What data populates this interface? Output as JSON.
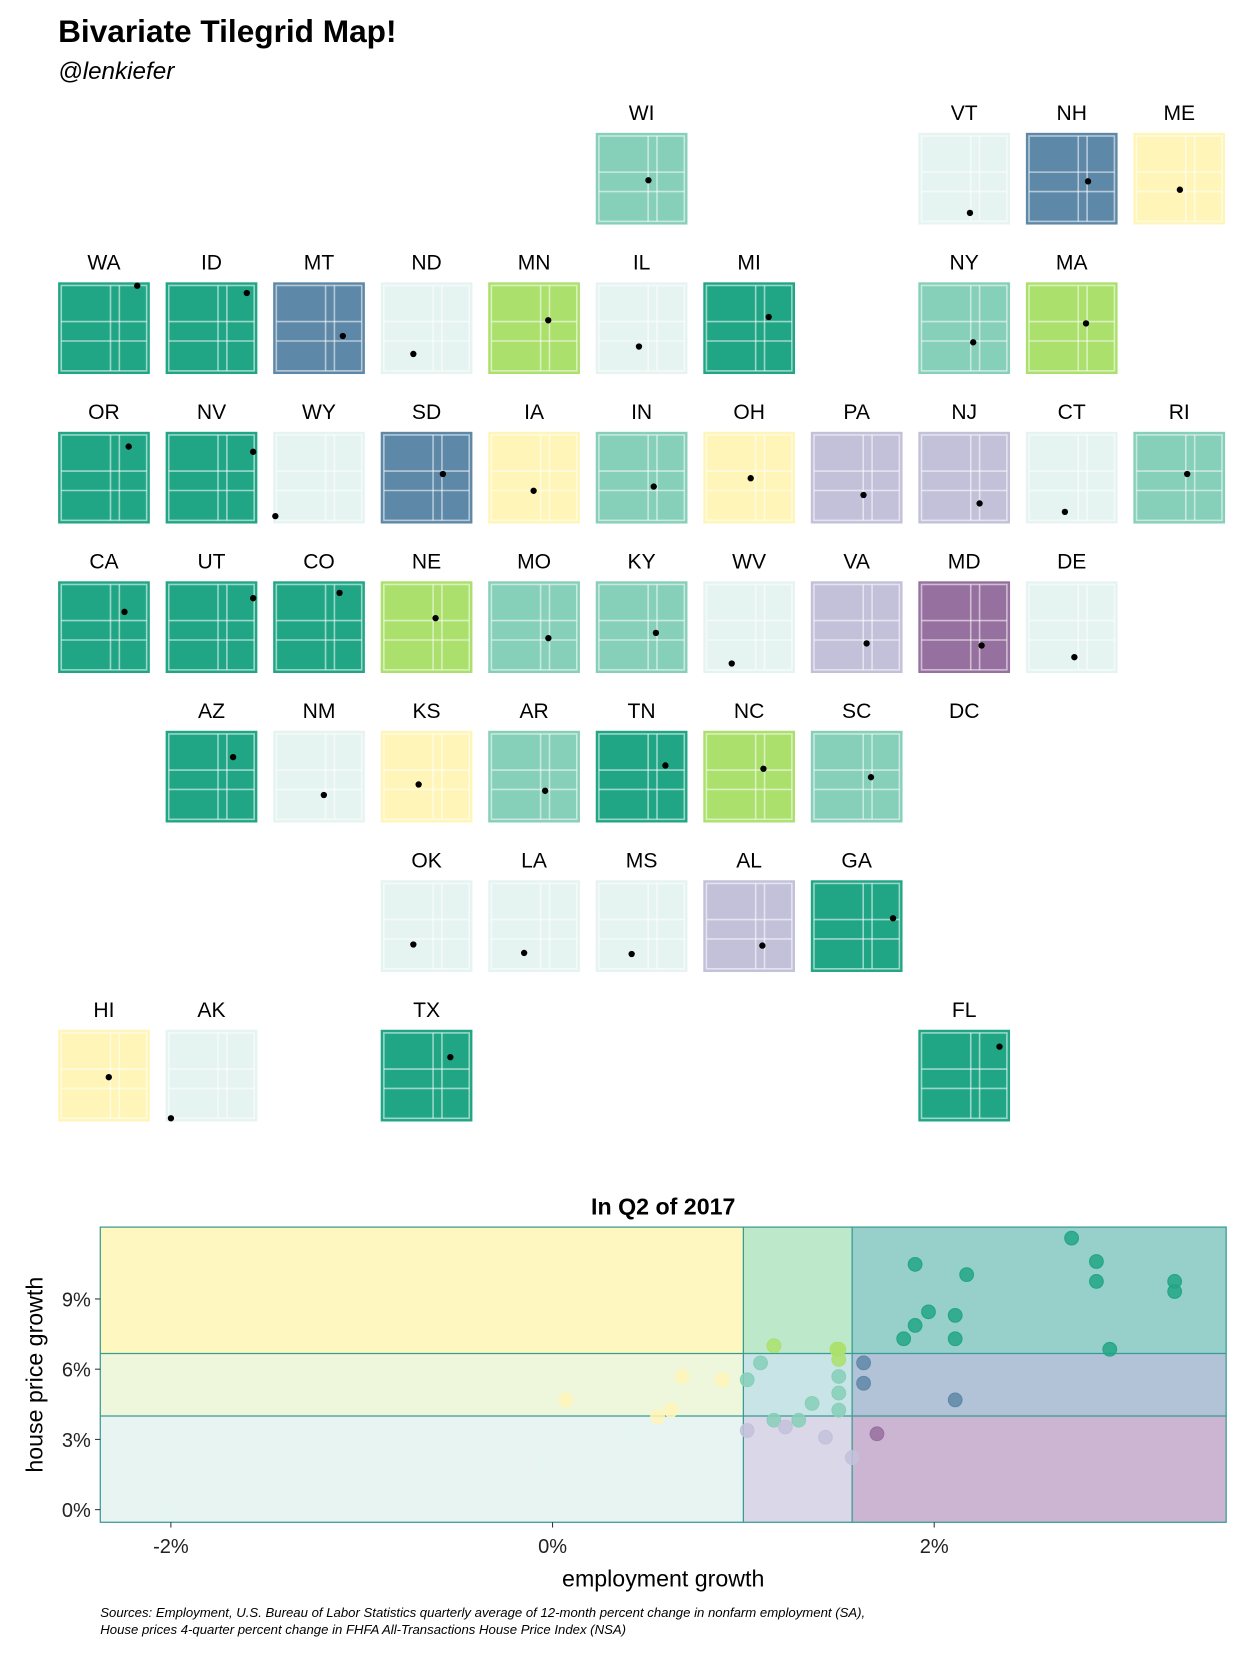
{
  "chart_data": {
    "type": "bivariate-tilegrid",
    "title": "Bivariate Tilegrid Map!",
    "subtitle": "@lenkiefer",
    "xlim": [
      -2.37,
      3.53
    ],
    "ylim": [
      -0.54,
      12.07
    ],
    "x_breaks": [
      1.0,
      1.57
    ],
    "y_breaks": [
      4.0,
      6.67
    ],
    "region_colors": [
      [
        "#fff7c0",
        "#bde8c9",
        "#97cfca"
      ],
      [
        "#eef6dc",
        "#c8e4e6",
        "#b2c3d8"
      ],
      [
        "#e8f4f2",
        "#dad8e8",
        "#ccb5d3"
      ]
    ],
    "break_color": "#3a9b94",
    "states": [
      {
        "name": "WI",
        "x": 1.02,
        "y": 5.55,
        "color": "#86cfb8"
      },
      {
        "name": "VT",
        "x": 0.95,
        "y": 1.06,
        "color": "#e6f4f1"
      },
      {
        "name": "NH",
        "x": 1.63,
        "y": 5.4,
        "color": "#5e88a8"
      },
      {
        "name": "ME",
        "x": 0.62,
        "y": 4.25,
        "color": "#fff5b8"
      },
      {
        "name": "WA",
        "x": 2.72,
        "y": 11.6,
        "color": "#21a685"
      },
      {
        "name": "ID",
        "x": 2.85,
        "y": 10.6,
        "color": "#21a685"
      },
      {
        "name": "MT",
        "x": 2.11,
        "y": 4.69,
        "color": "#5e88a8"
      },
      {
        "name": "ND",
        "x": -0.27,
        "y": 2.22,
        "color": "#e6f4f1"
      },
      {
        "name": "MN",
        "x": 1.49,
        "y": 6.85,
        "color": "#abe06c"
      },
      {
        "name": "IL",
        "x": 0.41,
        "y": 3.24,
        "color": "#e6f4f1"
      },
      {
        "name": "MI",
        "x": 1.84,
        "y": 7.3,
        "color": "#21a685"
      },
      {
        "name": "NY",
        "x": 1.16,
        "y": 3.82,
        "color": "#86cfb8"
      },
      {
        "name": "MA",
        "x": 1.5,
        "y": 6.42,
        "color": "#abe06c"
      },
      {
        "name": "OR",
        "x": 2.17,
        "y": 10.04,
        "color": "#21a685"
      },
      {
        "name": "NV",
        "x": 3.26,
        "y": 9.32,
        "color": "#21a685"
      },
      {
        "name": "WY",
        "x": -2.23,
        "y": 0.48,
        "color": "#e6f4f1"
      },
      {
        "name": "SD",
        "x": 1.63,
        "y": 6.27,
        "color": "#5e88a8"
      },
      {
        "name": "IA",
        "x": 0.55,
        "y": 3.96,
        "color": "#fff5b8"
      },
      {
        "name": "IN",
        "x": 1.36,
        "y": 4.54,
        "color": "#86cfb8"
      },
      {
        "name": "OH",
        "x": 0.68,
        "y": 5.69,
        "color": "#fff5b8"
      },
      {
        "name": "PA",
        "x": 1.02,
        "y": 3.38,
        "color": "#c3c1da"
      },
      {
        "name": "NJ",
        "x": 1.57,
        "y": 2.22,
        "color": "#c3c1da"
      },
      {
        "name": "CT",
        "x": 0.14,
        "y": 1.06,
        "color": "#e6f4f1"
      },
      {
        "name": "RI",
        "x": 1.09,
        "y": 6.27,
        "color": "#86cfb8"
      },
      {
        "name": "CA",
        "x": 1.9,
        "y": 7.87,
        "color": "#21a685"
      },
      {
        "name": "UT",
        "x": 3.26,
        "y": 9.75,
        "color": "#21a685"
      },
      {
        "name": "CO",
        "x": 1.9,
        "y": 10.48,
        "color": "#21a685"
      },
      {
        "name": "NE",
        "x": 1.16,
        "y": 7.0,
        "color": "#abe06c"
      },
      {
        "name": "MO",
        "x": 1.5,
        "y": 4.25,
        "color": "#86cfb8"
      },
      {
        "name": "KY",
        "x": 1.5,
        "y": 4.98,
        "color": "#86cfb8"
      },
      {
        "name": "WV",
        "x": -0.54,
        "y": 0.77,
        "color": "#e6f4f1"
      },
      {
        "name": "VA",
        "x": 1.22,
        "y": 3.53,
        "color": "#c3c1da"
      },
      {
        "name": "MD",
        "x": 1.7,
        "y": 3.24,
        "color": "#96709f"
      },
      {
        "name": "DE",
        "x": 0.75,
        "y": 1.64,
        "color": "#e6f4f1"
      },
      {
        "name": "AZ",
        "x": 1.97,
        "y": 8.45,
        "color": "#21a685"
      },
      {
        "name": "NM",
        "x": 0.89,
        "y": 3.24,
        "color": "#e6f4f1"
      },
      {
        "name": "KS",
        "x": 0.07,
        "y": 4.69,
        "color": "#fff5b8"
      },
      {
        "name": "AR",
        "x": 1.29,
        "y": 3.82,
        "color": "#86cfb8"
      },
      {
        "name": "TN",
        "x": 2.11,
        "y": 7.3,
        "color": "#21a685"
      },
      {
        "name": "NC",
        "x": 1.5,
        "y": 6.85,
        "color": "#abe06c"
      },
      {
        "name": "SC",
        "x": 1.5,
        "y": 5.69,
        "color": "#86cfb8"
      },
      {
        "name": "DC",
        "x": null,
        "y": null,
        "color": null
      },
      {
        "name": "OK",
        "x": -0.27,
        "y": 3.24,
        "color": "#e6f4f1"
      },
      {
        "name": "LA",
        "x": -0.06,
        "y": 2.08,
        "color": "#e6f4f1"
      },
      {
        "name": "MS",
        "x": -0.06,
        "y": 1.93,
        "color": "#e6f4f1"
      },
      {
        "name": "AL",
        "x": 1.43,
        "y": 3.09,
        "color": "#c3c1da"
      },
      {
        "name": "GA",
        "x": 2.92,
        "y": 6.85,
        "color": "#21a685"
      },
      {
        "name": "HI",
        "x": 0.89,
        "y": 5.55,
        "color": "#fff5b8"
      },
      {
        "name": "AK",
        "x": -2.03,
        "y": -0.1,
        "color": "#e6f4f1"
      },
      {
        "name": "TX",
        "x": 2.11,
        "y": 8.3,
        "color": "#21a685"
      },
      {
        "name": "FL",
        "x": 2.85,
        "y": 9.75,
        "color": "#21a685"
      }
    ],
    "scatter": {
      "title": "In Q2 of 2017",
      "xlabel": "employment growth",
      "ylabel": "house price growth",
      "xticks": [
        {
          "value": -2,
          "label": "-2%"
        },
        {
          "value": 0,
          "label": "0%"
        },
        {
          "value": 2,
          "label": "2%"
        }
      ],
      "yticks": [
        {
          "value": 0,
          "label": "0%"
        },
        {
          "value": 3,
          "label": "3%"
        },
        {
          "value": 6,
          "label": "6%"
        },
        {
          "value": 9,
          "label": "9%"
        }
      ]
    },
    "source": [
      "Sources: Employment, U.S. Bureau of Labor Statistics quarterly average of 12-month percent change in nonfarm employment (SA),",
      "House prices 4-quarter percent change in FHFA All-Transactions House Price Index (NSA)"
    ]
  }
}
